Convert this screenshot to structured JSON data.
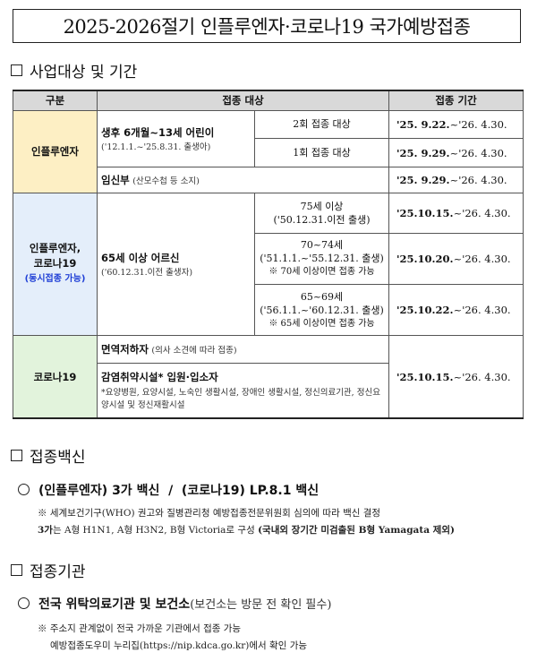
{
  "title": "2025-2026절기 인플루엔자·코로나19 국가예방접종",
  "sections": {
    "target": "사업대상 및 기간",
    "vaccine": "접종백신",
    "institution": "접종기관"
  },
  "table": {
    "headers": [
      "구분",
      "접종 대상",
      "접종 기간"
    ],
    "influenza": {
      "category": "인플루엔자",
      "child_label": "생후 6개월~13세 어린이",
      "child_birth": "('12.1.1.~'25.8.31. 출생아)",
      "child_rows": [
        {
          "dose": "2회 접종 대상",
          "start": "'25. 9.22.",
          "end": "~'26. 4.30."
        },
        {
          "dose": "1회 접종 대상",
          "start": "'25. 9.29.",
          "end": "~'26. 4.30."
        }
      ],
      "pregnant_label": "임신부",
      "pregnant_note": "(산모수첩 등 소지)",
      "pregnant_start": "'25. 9.29.",
      "pregnant_end": "~'26. 4.30."
    },
    "both": {
      "category_line1": "인플루엔자,",
      "category_line2": "코로나19",
      "category_note": "(동시접종 가능)",
      "elder_label": "65세 이상 어르신",
      "elder_birth": "('60.12.31.이전 출생자)",
      "rows": [
        {
          "line1": "75세 이상",
          "line2": "('50.12.31.이전 출생)",
          "line3": "",
          "start": "'25.10.15.",
          "end": "~'26. 4.30."
        },
        {
          "line1": "70~74세",
          "line2": "('51.1.1.~'55.12.31. 출생)",
          "line3": "※ 70세 이상이면 접종 가능",
          "start": "'25.10.20.",
          "end": "~'26. 4.30."
        },
        {
          "line1": "65~69세",
          "line2": "('56.1.1.~'60.12.31. 출생)",
          "line3": "※ 65세 이상이면 접종 가능",
          "start": "'25.10.22.",
          "end": "~'26. 4.30."
        }
      ]
    },
    "covid": {
      "category": "코로나19",
      "immuno_label": "면역저하자",
      "immuno_note": "(의사 소견에 따라 접종)",
      "facility_label": "감염취약시설* 입원·입소자",
      "facility_note": "*요양병원, 요양시설, 노숙인 생활시설, 장애인 생활시설, 정신의료기관, 정신요양시설 및 정신재활시설",
      "start": "'25.10.15.",
      "end": "~'26. 4.30."
    }
  },
  "vaccine": {
    "text": "(인플루엔자) 3가 백신  /  (코로나19) LP.8.1 백신",
    "note1": "※ 세계보건기구(WHO) 권고와 질병관리청 예방접종전문위원회 심의에 따라 백신 결정",
    "note2_bold": "3가",
    "note2_text": "는 A형 H1N1, A형 H3N2, B형 Victoria로 구성 ",
    "note2_paren": "(국내외 장기간 미검출된 B형 Yamagata 제외)"
  },
  "institution": {
    "main": "전국 위탁의료기관 및 보건소",
    "paren": "(보건소는 방문 전 확인 필수)",
    "note1": "※ 주소지 관계없이 전국 가까운 기관에서 접종 가능",
    "note2": "예방접종도우미 누리집(https://nip.kdca.go.kr)에서 확인 가능"
  }
}
